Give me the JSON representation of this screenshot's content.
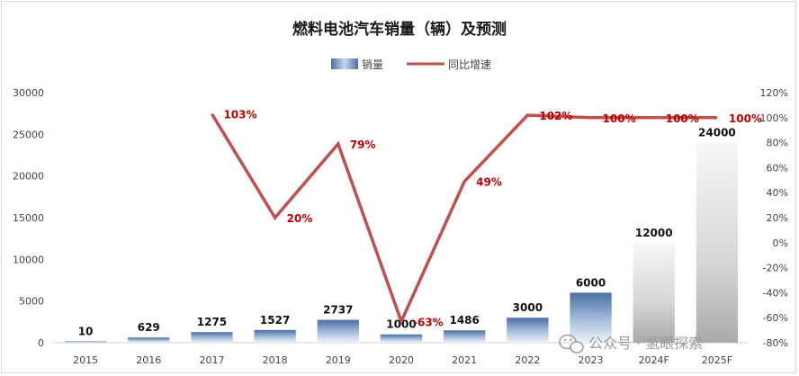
{
  "chart_data": {
    "type": "bar",
    "title": "燃料电池汽车销量（辆）及预测",
    "categories": [
      "2015",
      "2016",
      "2017",
      "2018",
      "2019",
      "2020",
      "2021",
      "2022",
      "2023",
      "2024F",
      "2025F"
    ],
    "series": [
      {
        "name": "销量",
        "type": "bar",
        "axis": "left",
        "values": [
          10,
          629,
          1275,
          1527,
          2737,
          1000,
          1486,
          3000,
          6000,
          12000,
          24000
        ],
        "labels": [
          "10",
          "629",
          "1275",
          "1527",
          "2737",
          "1000",
          "1486",
          "3000",
          "6000",
          "12000",
          "24000"
        ]
      },
      {
        "name": "同比增速",
        "type": "line",
        "axis": "right",
        "values": [
          null,
          null,
          103,
          20,
          79,
          -63,
          49,
          102,
          100,
          100,
          100
        ],
        "labels": [
          "",
          "",
          "103%",
          "20%",
          "79%",
          "-63%",
          "49%",
          "102%",
          "100%",
          "100%",
          "100%"
        ]
      }
    ],
    "y_left": {
      "min": 0,
      "max": 30000,
      "ticks": [
        "0",
        "5000",
        "10000",
        "15000",
        "20000",
        "25000",
        "30000"
      ]
    },
    "y_right": {
      "min": -80,
      "max": 120,
      "ticks": [
        "-80%",
        "-60%",
        "-40%",
        "-20%",
        "0%",
        "20%",
        "40%",
        "60%",
        "80%",
        "100%",
        "120%"
      ]
    },
    "legend_position": "top-center",
    "grid": false,
    "colors": {
      "bar_dark": "#4a6fa5",
      "bar_light": "#dfe8f3",
      "bar_forecast_dark": "#b0b0b0",
      "line": "#c0504d",
      "pct_label": "#c00000"
    }
  },
  "watermark": {
    "text": "公众号 · 氢眼探索",
    "icon": "wechat-icon"
  }
}
